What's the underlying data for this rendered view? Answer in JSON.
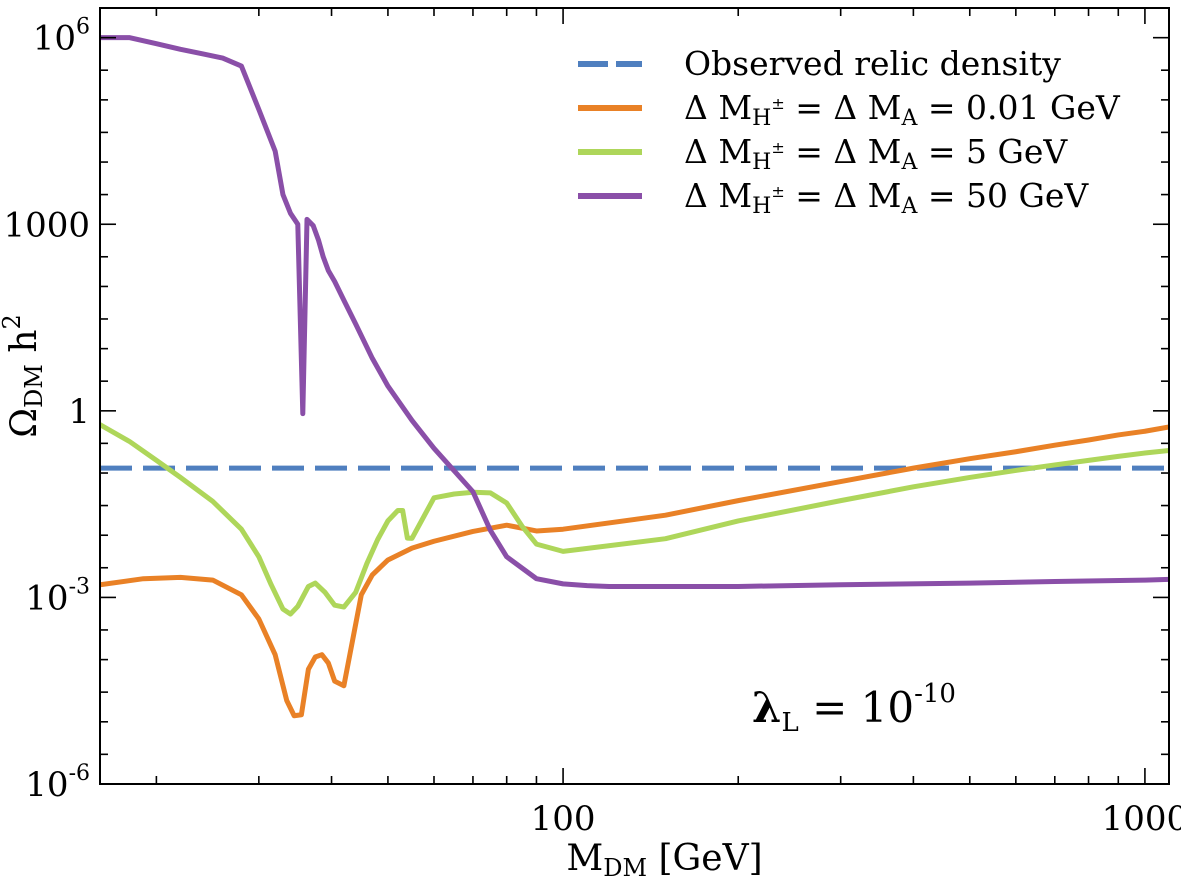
{
  "chart_data": {
    "type": "line",
    "x_scale": "log",
    "y_scale": "log",
    "xlim": [
      16,
      1100
    ],
    "ylim": [
      1e-06,
      3000000
    ],
    "xlabel": {
      "main": "M",
      "sub": "DM",
      "rest": " [GeV]"
    },
    "ylabel": {
      "main": "Ω",
      "sub": "DM",
      "rest": " h",
      "sup": "2"
    },
    "x_ticks": [
      {
        "value": 100,
        "label": "100"
      },
      {
        "value": 1000,
        "label": "1000"
      }
    ],
    "y_ticks": [
      {
        "value": 1000000,
        "base": "10",
        "exp": "6"
      },
      {
        "value": 1000,
        "label": "1000"
      },
      {
        "value": 1,
        "label": "1"
      },
      {
        "value": 0.001,
        "base": "10",
        "exp": "-3"
      },
      {
        "value": 1e-06,
        "base": "10",
        "exp": "-6"
      }
    ],
    "annotation": {
      "main": "λ",
      "sub": "L",
      "mid": " = 10",
      "sup": "-10"
    },
    "legend_position": "top-right",
    "legend": [
      {
        "key": "observed",
        "text": "Observed relic density"
      },
      {
        "key": "dm001",
        "pre": "Δ M",
        "sub1": "H",
        "sup1": "±",
        "mid": " = Δ M",
        "sub2": "A",
        "post": " = 0.01 GeV"
      },
      {
        "key": "dm5",
        "pre": "Δ M",
        "sub1": "H",
        "sup1": "±",
        "mid": " = Δ M",
        "sub2": "A",
        "post": " = 5 GeV"
      },
      {
        "key": "dm50",
        "pre": "Δ M",
        "sub1": "H",
        "sup1": "±",
        "mid": " = Δ M",
        "sub2": "A",
        "post": " = 50 GeV"
      }
    ],
    "series": [
      {
        "key": "observed",
        "color": "#4f7fbf",
        "dashed": true,
        "x": [
          16,
          1100
        ],
        "y": [
          0.12,
          0.12
        ]
      },
      {
        "key": "dm001",
        "color": "#e98126",
        "dashed": false,
        "x": [
          16,
          19,
          22,
          25,
          28,
          30,
          32,
          33.5,
          34.5,
          35.5,
          36.5,
          37.5,
          38.5,
          39.5,
          40.5,
          42,
          43.5,
          45,
          47,
          50,
          55,
          60,
          70,
          80,
          85,
          90,
          100,
          150,
          200,
          300,
          400,
          500,
          600,
          700,
          800,
          900,
          1000,
          1100
        ],
        "y": [
          0.0016,
          0.002,
          0.0021,
          0.0019,
          0.0011,
          0.00045,
          0.00012,
          2.2e-05,
          1.25e-05,
          1.3e-05,
          7e-05,
          0.00011,
          0.00012,
          8.8e-05,
          4.5e-05,
          3.8e-05,
          0.00021,
          0.0011,
          0.0023,
          0.004,
          0.0062,
          0.008,
          0.0115,
          0.0145,
          0.013,
          0.0117,
          0.0125,
          0.021,
          0.036,
          0.073,
          0.12,
          0.17,
          0.22,
          0.28,
          0.34,
          0.41,
          0.47,
          0.55
        ]
      },
      {
        "key": "dm5",
        "color": "#aed65a",
        "dashed": false,
        "x": [
          16,
          18,
          20,
          22,
          25,
          28,
          30,
          31.5,
          33,
          34,
          35,
          36.5,
          37.5,
          39,
          40.5,
          42,
          44,
          46,
          48,
          50,
          52,
          53,
          54,
          55,
          60,
          65,
          70,
          75,
          80,
          85,
          90,
          100,
          150,
          200,
          300,
          400,
          500,
          600,
          700,
          800,
          900,
          1000,
          1100
        ],
        "y": [
          0.6,
          0.32,
          0.16,
          0.085,
          0.035,
          0.0125,
          0.0045,
          0.0016,
          0.00065,
          0.00054,
          0.00072,
          0.0015,
          0.0017,
          0.0012,
          0.00075,
          0.0007,
          0.0012,
          0.0035,
          0.0085,
          0.017,
          0.025,
          0.025,
          0.009,
          0.0089,
          0.04,
          0.046,
          0.049,
          0.048,
          0.033,
          0.014,
          0.0072,
          0.0055,
          0.0088,
          0.017,
          0.036,
          0.06,
          0.085,
          0.11,
          0.135,
          0.16,
          0.185,
          0.21,
          0.23
        ]
      },
      {
        "key": "dm50",
        "color": "#8a4fa8",
        "dashed": false,
        "x": [
          16,
          18,
          20,
          22,
          24,
          26,
          28,
          30,
          32,
          33,
          34,
          35,
          35.7,
          36.3,
          37.2,
          38,
          38.7,
          39.5,
          40.5,
          42,
          44,
          47,
          50,
          55,
          60,
          70,
          75,
          80,
          90,
          100,
          110,
          120,
          140,
          160,
          200,
          300,
          500,
          700,
          1000,
          1100
        ],
        "y": [
          1000000,
          1000000,
          800000,
          650000,
          550000,
          470000,
          350000,
          70000,
          15000,
          3000,
          1500,
          1000,
          0.9,
          1200,
          950,
          550,
          300,
          180,
          120,
          60,
          25,
          7,
          2.5,
          0.7,
          0.25,
          0.05,
          0.012,
          0.0045,
          0.002,
          0.00165,
          0.00155,
          0.0015,
          0.0015,
          0.0015,
          0.0015,
          0.0016,
          0.0017,
          0.0018,
          0.0019,
          0.00195
        ]
      }
    ]
  }
}
